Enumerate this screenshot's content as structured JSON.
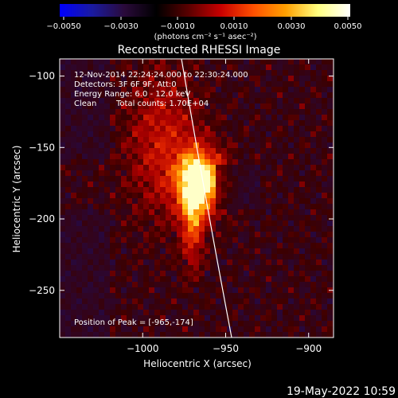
{
  "colorbar": {
    "ticks": [
      "−0.0050",
      "−0.0030",
      "−0.0010",
      "0.0010",
      "0.0030",
      "0.0050"
    ],
    "unit": "(photons cm⁻² s⁻¹ asec⁻²)",
    "colormap": [
      "#0000ff",
      "#1a1aa0",
      "#2a0a3a",
      "#000000",
      "#5a0000",
      "#c80000",
      "#ff5000",
      "#ffa000",
      "#ffff80",
      "#ffffff"
    ]
  },
  "chart_data": {
    "type": "heatmap",
    "title": "Reconstructed RHESSI Image",
    "xlabel": "Heliocentric X (arcsec)",
    "ylabel": "Heliocentric Y (arcsec)",
    "xlim": [
      -1050,
      -885
    ],
    "ylim": [
      -283,
      -88
    ],
    "xticks": [
      -1000,
      -950,
      -900
    ],
    "yticks": [
      -100,
      -150,
      -200,
      -250
    ],
    "xtick_labels": [
      "−1000",
      "−950",
      "−900"
    ],
    "ytick_labels": [
      "−100",
      "−150",
      "−200",
      "−250"
    ],
    "peak": [
      -965,
      -174
    ],
    "annotations": [
      "12-Nov-2014 22:24:24.000 to 22:30:24.000",
      "Detectors: 3F 6F 9F, Att:0",
      "Energy Range: 6.0 - 12.0 keV",
      "Clean",
      "Total counts: 1.70E+04"
    ],
    "peak_label": "Position of Peak = [-965,-174]",
    "limb_line": {
      "color": "#ffffff"
    }
  },
  "footer": {
    "date": "19-May-2022 10:59"
  }
}
